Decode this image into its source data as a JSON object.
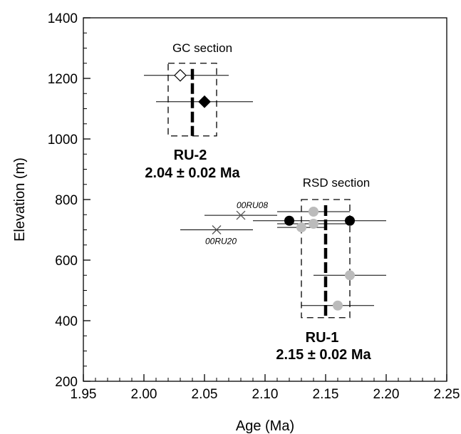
{
  "chart_data": {
    "type": "scatter",
    "xlabel": "Age (Ma)",
    "ylabel": "Elevation (m)",
    "xlim": [
      1.95,
      2.25
    ],
    "ylim": [
      200,
      1400
    ],
    "x_ticks": [
      1.95,
      2.0,
      2.05,
      2.1,
      2.15,
      2.2,
      2.25
    ],
    "x_tick_labels": [
      "1.95",
      "2.00",
      "2.05",
      "2.10",
      "2.15",
      "2.20",
      "2.25"
    ],
    "y_ticks": [
      200,
      400,
      600,
      800,
      1000,
      1200,
      1400
    ],
    "y_tick_labels": [
      "200",
      "400",
      "600",
      "800",
      "1000",
      "1200",
      "1400"
    ],
    "x_minor_step": 0.01,
    "y_minor_step": 50,
    "grid": false,
    "series": [
      {
        "marker": "diamond-open",
        "color": "#000000",
        "points": [
          {
            "x": 2.03,
            "y": 1210,
            "xerr_low": 0.03,
            "xerr_high": 0.04
          }
        ]
      },
      {
        "marker": "diamond-filled",
        "color": "#000000",
        "points": [
          {
            "x": 2.05,
            "y": 1123,
            "xerr_low": 0.04,
            "xerr_high": 0.04
          }
        ]
      },
      {
        "marker": "circle-black",
        "color": "#000000",
        "points": [
          {
            "x": 2.12,
            "y": 730,
            "xerr_low": 0.03,
            "xerr_high": 0.03
          },
          {
            "x": 2.17,
            "y": 730,
            "xerr_low": 0.03,
            "xerr_high": 0.03
          }
        ]
      },
      {
        "marker": "circle-gray",
        "color": "#bbbbbb",
        "points": [
          {
            "x": 2.14,
            "y": 760,
            "xerr_low": 0.03,
            "xerr_high": 0.03
          },
          {
            "x": 2.14,
            "y": 720,
            "xerr_low": 0.03,
            "xerr_high": 0.03
          },
          {
            "x": 2.13,
            "y": 708,
            "xerr_low": 0.02,
            "xerr_high": 0.02
          },
          {
            "x": 2.17,
            "y": 550,
            "xerr_low": 0.03,
            "xerr_high": 0.03
          },
          {
            "x": 2.16,
            "y": 450,
            "xerr_low": 0.03,
            "xerr_high": 0.03
          }
        ]
      },
      {
        "marker": "cross",
        "color": "#555555",
        "points": [
          {
            "x": 2.08,
            "y": 748,
            "xerr_low": 0.03,
            "xerr_high": 0.03,
            "label": "00RU08"
          },
          {
            "x": 2.06,
            "y": 700,
            "xerr_low": 0.03,
            "xerr_high": 0.03,
            "label": "00RU20"
          }
        ]
      }
    ],
    "groups": [
      {
        "section_label": "GC section",
        "result_name": "RU-2",
        "result_value": "2.04 ± 0.02 Ma",
        "mean_age": 2.04,
        "box_x": [
          2.02,
          2.06
        ],
        "box_y": [
          1010,
          1250
        ]
      },
      {
        "section_label": "RSD section",
        "result_name": "RU-1",
        "result_value": "2.15 ± 0.02 Ma",
        "mean_age": 2.15,
        "box_x": [
          2.13,
          2.17
        ],
        "box_y": [
          410,
          800
        ]
      }
    ]
  }
}
